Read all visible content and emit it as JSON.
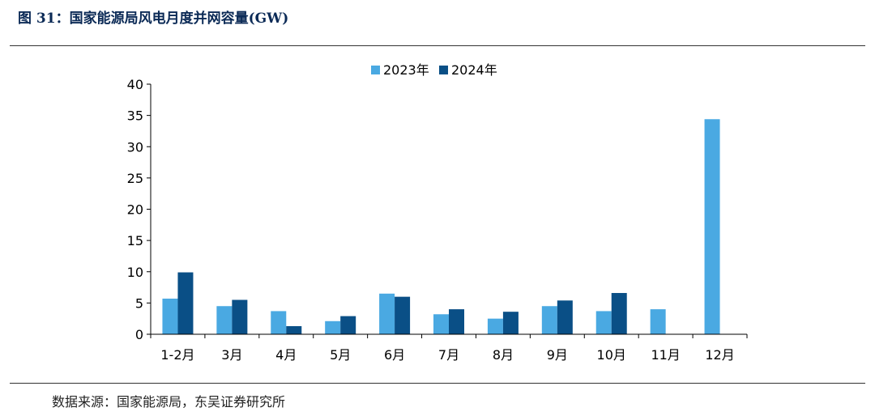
{
  "figure": {
    "title": "图 31：国家能源局风电月度并网容量(GW)",
    "source": "数据来源：国家能源局，东吴证券研究所"
  },
  "chart_data": {
    "type": "bar",
    "categories": [
      "1-2月",
      "3月",
      "4月",
      "5月",
      "6月",
      "7月",
      "8月",
      "9月",
      "10月",
      "11月",
      "12月"
    ],
    "series": [
      {
        "name": "2023年",
        "color": "#4aa9e2",
        "values": [
          5.7,
          4.5,
          3.7,
          2.1,
          6.5,
          3.2,
          2.5,
          4.5,
          3.7,
          4.0,
          34.4
        ]
      },
      {
        "name": "2024年",
        "color": "#0a4f86",
        "values": [
          9.9,
          5.5,
          1.3,
          2.9,
          6.0,
          4.0,
          3.6,
          5.4,
          6.6,
          null,
          null
        ]
      }
    ],
    "yticks": [
      0,
      5,
      10,
      15,
      20,
      25,
      30,
      35,
      40
    ],
    "ylim": [
      0,
      40
    ],
    "legend": "top-center",
    "grid": false
  }
}
